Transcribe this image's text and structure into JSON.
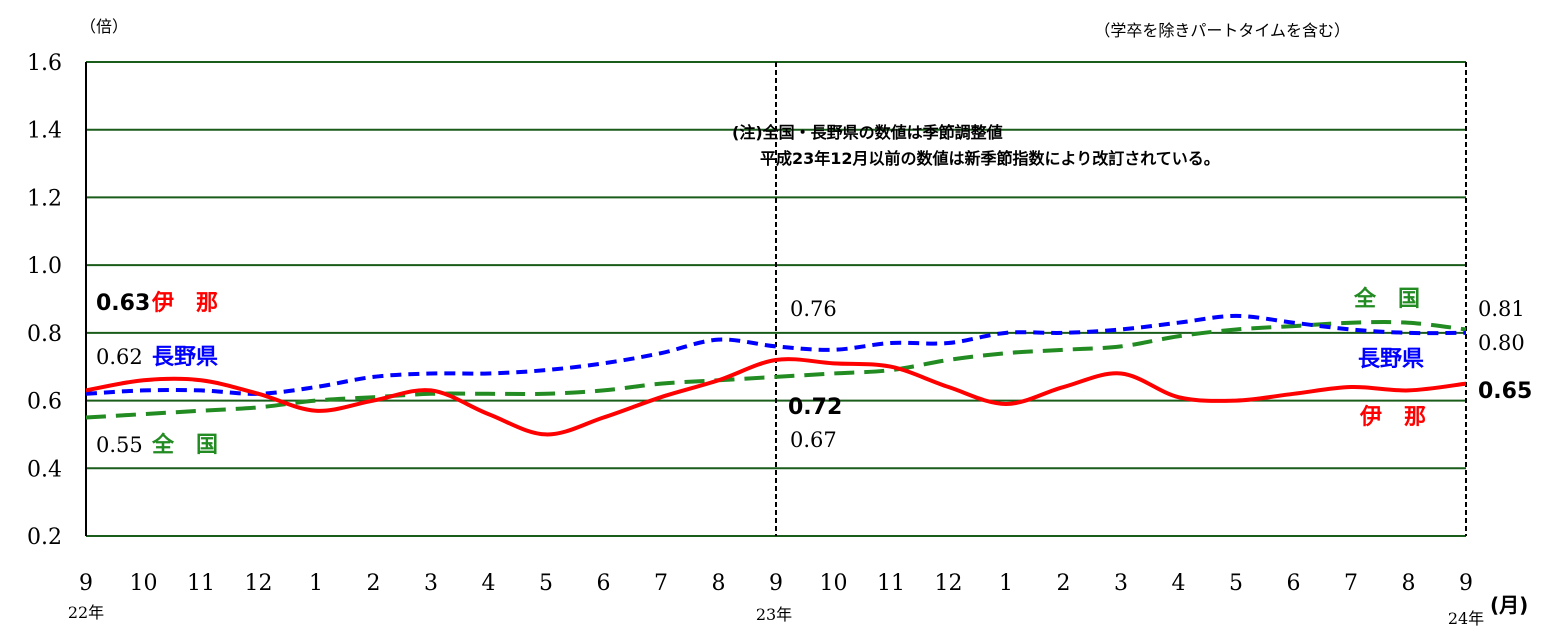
{
  "chart_data": {
    "type": "line",
    "unit_label": "（倍）",
    "note_top_right": "（学卒を除きパートタイムを含む）",
    "note_lines": [
      "(注)全国・長野県の数値は季節調整値",
      "平成23年12月以前の数値は新季節指数により改訂されている。"
    ],
    "x_unit": "(月)",
    "categories": [
      "9",
      "10",
      "11",
      "12",
      "1",
      "2",
      "3",
      "4",
      "5",
      "6",
      "7",
      "8",
      "9",
      "10",
      "11",
      "12",
      "1",
      "2",
      "3",
      "4",
      "5",
      "6",
      "7",
      "8",
      "9"
    ],
    "year_labels": [
      "22年",
      "23年",
      "24年"
    ],
    "ylim": [
      0.2,
      1.6
    ],
    "y_ticks": [
      "0.2",
      "0.4",
      "0.6",
      "0.8",
      "1.0",
      "1.2",
      "1.4",
      "1.6"
    ],
    "grid": true,
    "series": [
      {
        "name": "伊　那",
        "color": "#ff0000",
        "style": "solid",
        "values": [
          0.63,
          0.66,
          0.66,
          0.62,
          0.57,
          0.6,
          0.63,
          0.56,
          0.5,
          0.55,
          0.61,
          0.66,
          0.72,
          0.71,
          0.7,
          0.64,
          0.59,
          0.64,
          0.68,
          0.61,
          0.6,
          0.62,
          0.64,
          0.63,
          0.65
        ]
      },
      {
        "name": "長野県",
        "color": "#0000ff",
        "style": "dashed",
        "values": [
          0.62,
          0.63,
          0.63,
          0.62,
          0.64,
          0.67,
          0.68,
          0.68,
          0.69,
          0.71,
          0.74,
          0.78,
          0.76,
          0.75,
          0.77,
          0.77,
          0.8,
          0.8,
          0.81,
          0.83,
          0.85,
          0.83,
          0.81,
          0.8,
          0.8
        ]
      },
      {
        "name": "全　国",
        "color": "#228b22",
        "style": "dashed",
        "values": [
          0.55,
          0.56,
          0.57,
          0.58,
          0.6,
          0.61,
          0.62,
          0.62,
          0.62,
          0.63,
          0.65,
          0.66,
          0.67,
          0.68,
          0.69,
          0.72,
          0.74,
          0.75,
          0.76,
          0.79,
          0.81,
          0.82,
          0.83,
          0.83,
          0.81
        ]
      }
    ],
    "annotations": {
      "left_ina_value": "0.63",
      "left_nagano_value": "0.62",
      "left_zenkoku_value": "0.55",
      "mid_nagano_value": "0.76",
      "mid_ina_value": "0.72",
      "mid_zenkoku_value": "0.67",
      "right_zenkoku_value": "0.81",
      "right_nagano_value": "0.80",
      "right_ina_value": "0.65"
    }
  }
}
